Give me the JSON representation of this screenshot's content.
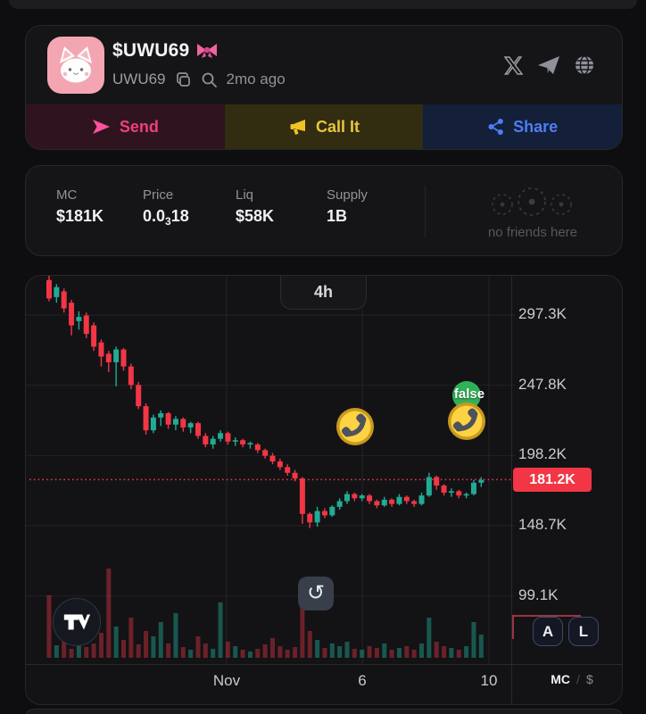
{
  "header": {
    "title": "$UWU69",
    "symbol": "UWU69",
    "age": "2mo ago"
  },
  "actions": {
    "send": "Send",
    "call_it": "Call It",
    "share": "Share"
  },
  "stats": {
    "items": [
      {
        "label": "MC",
        "value": "$181K"
      },
      {
        "label": "Price",
        "value_prefix": "0.0",
        "value_sub": "3",
        "value_suffix": "18"
      },
      {
        "label": "Liq",
        "value": "$58K"
      },
      {
        "label": "Supply",
        "value": "1B"
      }
    ],
    "friends_placeholder": "no friends here"
  },
  "chart": {
    "timeframe": "4h",
    "y_labels": [
      "297.3K",
      "247.8K",
      "198.2K",
      "148.7K",
      "99.1K"
    ],
    "current_price_label": "181.2K",
    "x_labels": [
      "Nov",
      "6",
      "10"
    ],
    "scale_buttons": [
      "A",
      "L"
    ],
    "unit_primary": "MC",
    "unit_divider": "/",
    "unit_secondary": "$",
    "markers": [
      {
        "type": "call"
      },
      {
        "type": "call",
        "label": "false"
      }
    ]
  },
  "colors": {
    "accent_send": "#ef3f7d",
    "accent_call": "#e7c63e",
    "accent_share": "#4d7ef7",
    "price_up": "#22ab94",
    "price_down": "#f23645",
    "badge": "#f23645"
  },
  "chart_data": {
    "type": "candlestick",
    "timeframe": "4h",
    "y_axis": {
      "unit": "K",
      "ticks": [
        297.3,
        247.8,
        198.2,
        148.7,
        99.1
      ],
      "current": 181.2
    },
    "x_axis": {
      "ticks": [
        "Nov",
        "6",
        "10"
      ]
    },
    "colors": {
      "up": "#22ab94",
      "down": "#f23645",
      "current_line": "#f23645"
    },
    "candles": [
      [
        322,
        325,
        307,
        309
      ],
      [
        310,
        319,
        306,
        317
      ],
      [
        314,
        316,
        299,
        302
      ],
      [
        306,
        308,
        283,
        290
      ],
      [
        293,
        300,
        287,
        296
      ],
      [
        297,
        299,
        281,
        284
      ],
      [
        290,
        292,
        272,
        275
      ],
      [
        278,
        280,
        261,
        268
      ],
      [
        270,
        272,
        257,
        264
      ],
      [
        264,
        275,
        247,
        273
      ],
      [
        273,
        274,
        258,
        261
      ],
      [
        261,
        263,
        245,
        248
      ],
      [
        248,
        250,
        231,
        233
      ],
      [
        233,
        235,
        213,
        216
      ],
      [
        216,
        227,
        214,
        225
      ],
      [
        225,
        230,
        219,
        228
      ],
      [
        228,
        229,
        217,
        220
      ],
      [
        220,
        226,
        216,
        224
      ],
      [
        224,
        225,
        215,
        218
      ],
      [
        218,
        222,
        214,
        221
      ],
      [
        221,
        222,
        210,
        212
      ],
      [
        212,
        214,
        204,
        206
      ],
      [
        206,
        212,
        203,
        210
      ],
      [
        210,
        216,
        208,
        214
      ],
      [
        214,
        215,
        206,
        208
      ],
      [
        208,
        211,
        205,
        209
      ],
      [
        209,
        210,
        204,
        206
      ],
      [
        206,
        208,
        203,
        207
      ],
      [
        206,
        207,
        200,
        202
      ],
      [
        202,
        203,
        196,
        198
      ],
      [
        198,
        200,
        192,
        194
      ],
      [
        194,
        196,
        188,
        190
      ],
      [
        190,
        192,
        184,
        186
      ],
      [
        186,
        188,
        180,
        182
      ],
      [
        182,
        183,
        150,
        157
      ],
      [
        157,
        158,
        147,
        151
      ],
      [
        151,
        162,
        148,
        159
      ],
      [
        159,
        161,
        154,
        156
      ],
      [
        156,
        163,
        155,
        162
      ],
      [
        162,
        168,
        160,
        166
      ],
      [
        166,
        173,
        164,
        171
      ],
      [
        171,
        172,
        166,
        168
      ],
      [
        168,
        171,
        166,
        170
      ],
      [
        170,
        171,
        164,
        166
      ],
      [
        166,
        167,
        161,
        163
      ],
      [
        163,
        169,
        162,
        167
      ],
      [
        167,
        168,
        162,
        164
      ],
      [
        164,
        171,
        163,
        169
      ],
      [
        169,
        170,
        164,
        166
      ],
      [
        166,
        167,
        162,
        164
      ],
      [
        164,
        172,
        163,
        170
      ],
      [
        170,
        186,
        169,
        183
      ],
      [
        183,
        184,
        174,
        177
      ],
      [
        177,
        178,
        170,
        172
      ],
      [
        172,
        175,
        169,
        173
      ],
      [
        173,
        174,
        168,
        170
      ],
      [
        170,
        172,
        168,
        171
      ],
      [
        171,
        181,
        170,
        179
      ],
      [
        179,
        183,
        176,
        181
      ]
    ],
    "volume": [
      70,
      14,
      22,
      10,
      18,
      12,
      16,
      28,
      100,
      35,
      20,
      45,
      15,
      30,
      24,
      40,
      16,
      50,
      12,
      9,
      24,
      16,
      10,
      62,
      18,
      13,
      9,
      7,
      10,
      15,
      22,
      13,
      9,
      12,
      78,
      30,
      20,
      11,
      16,
      13,
      18,
      10,
      9,
      13,
      11,
      16,
      9,
      11,
      13,
      9,
      16,
      45,
      18,
      13,
      11,
      9,
      13,
      40,
      26
    ]
  }
}
